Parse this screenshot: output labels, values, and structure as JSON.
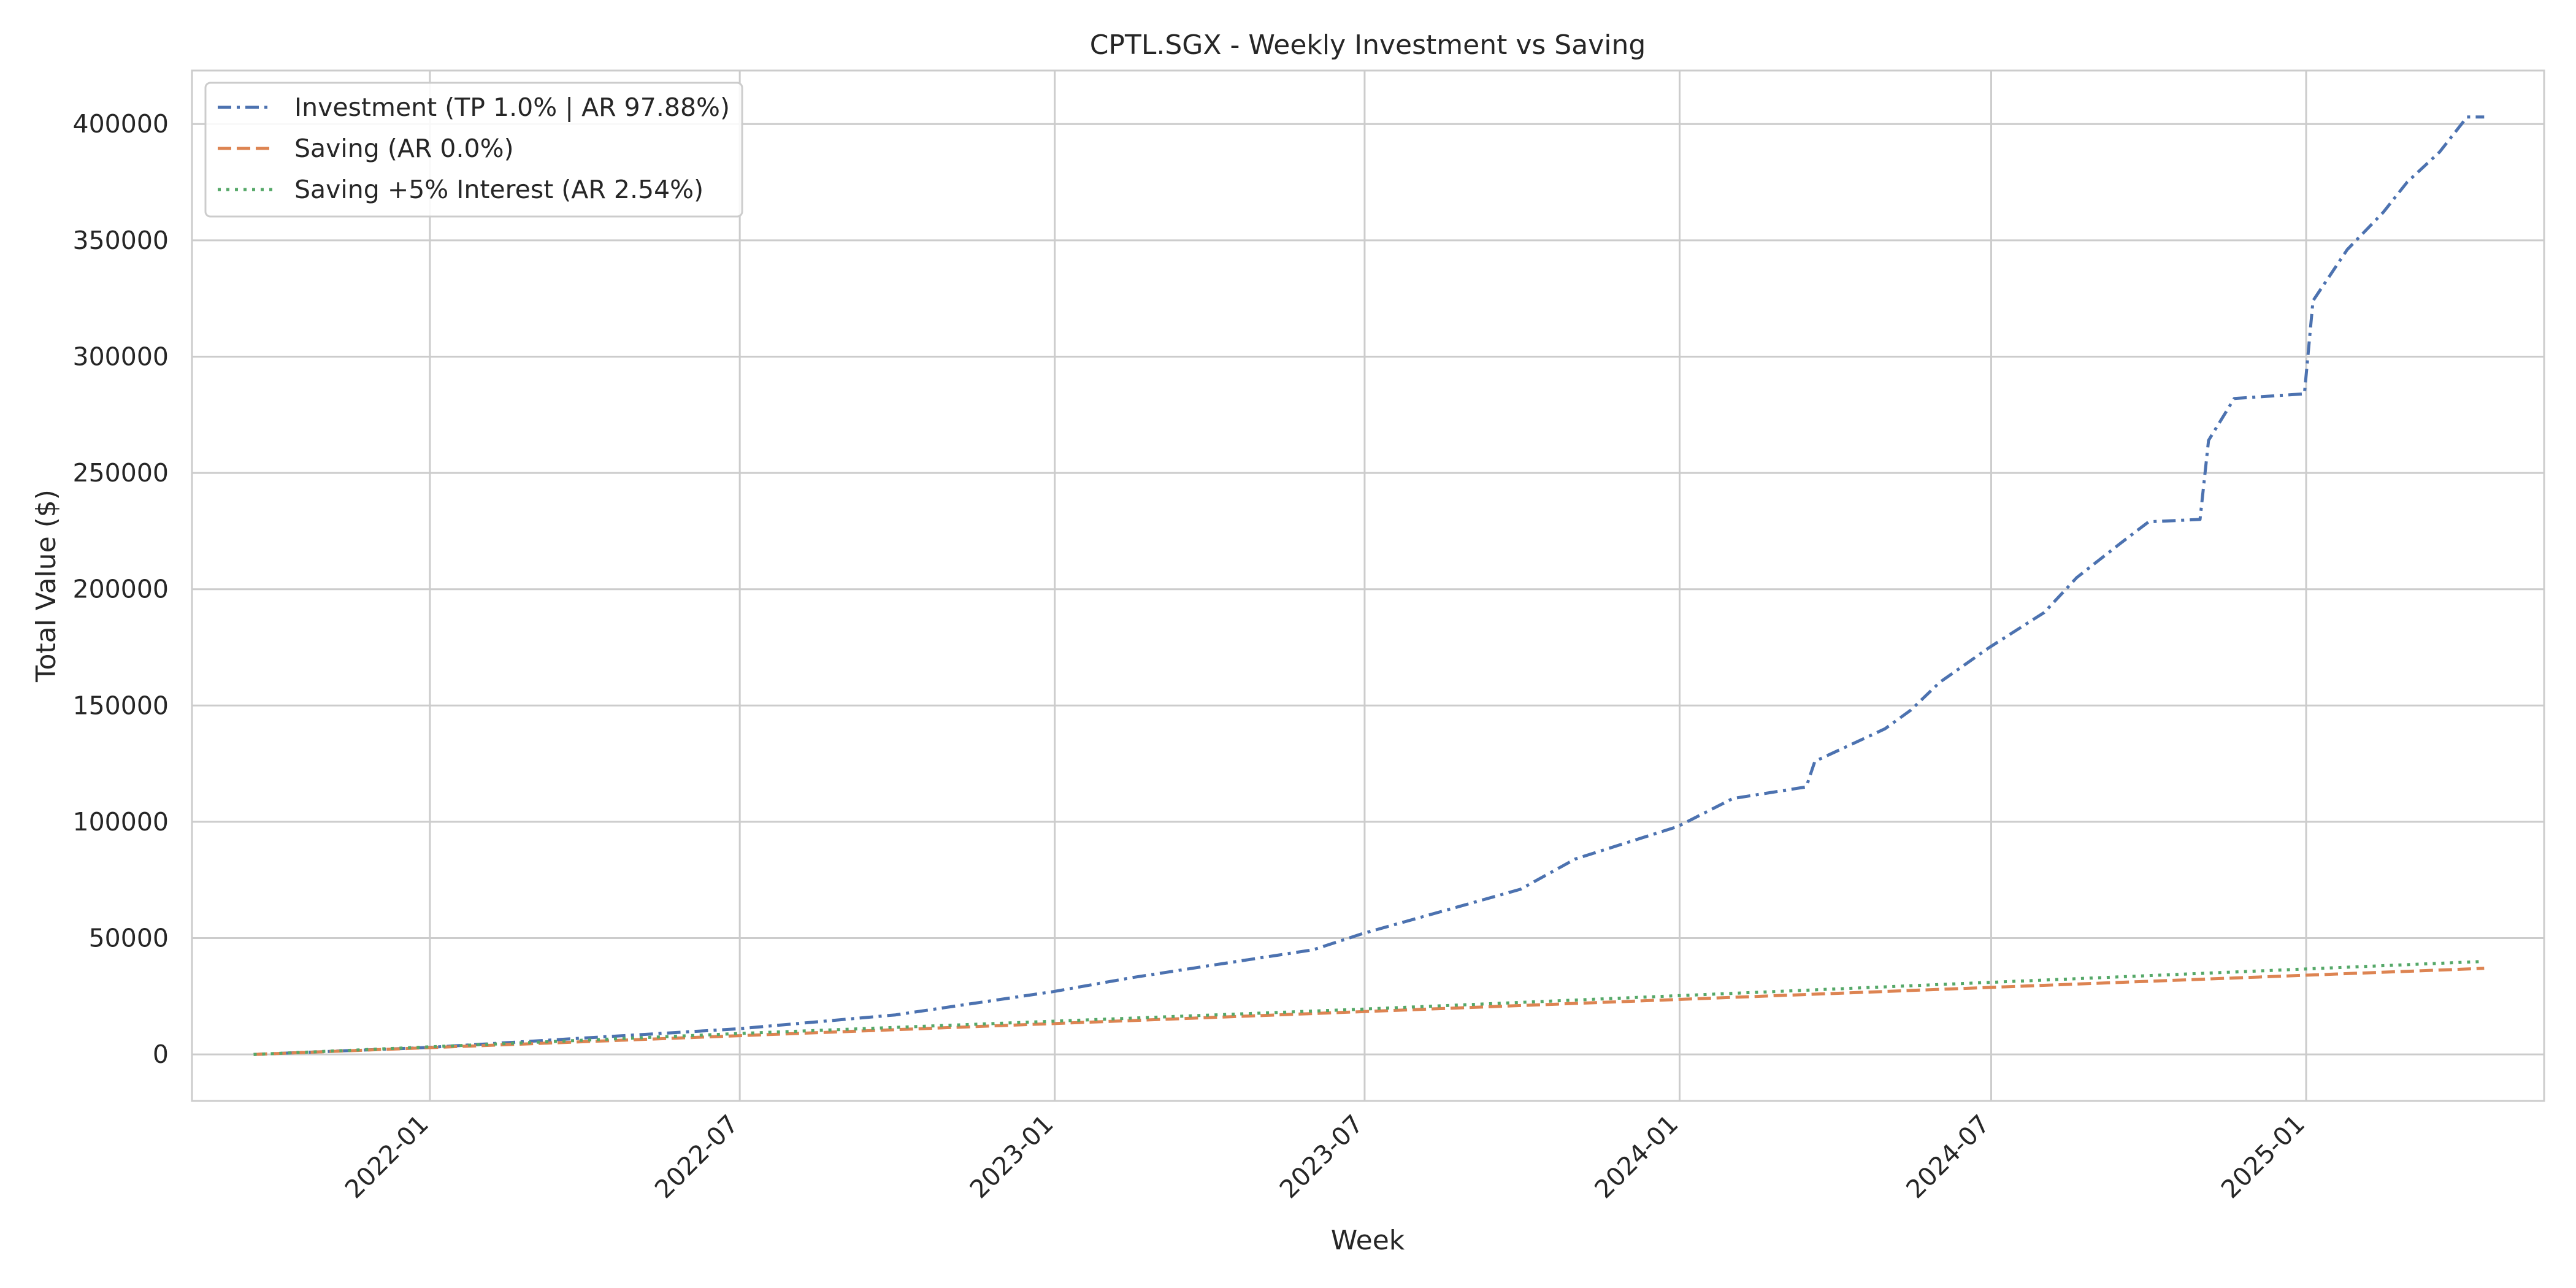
{
  "chart_data": {
    "type": "line",
    "title": "CPTL.SGX - Weekly Investment vs Saving",
    "xlabel": "Week",
    "ylabel": "Total Value ($)",
    "x_axis_type": "date",
    "x_range": [
      "2021-08-15",
      "2025-05-20"
    ],
    "ylim": [
      -20000,
      423000
    ],
    "x_ticks": [
      "2022-01",
      "2022-07",
      "2023-01",
      "2023-07",
      "2024-01",
      "2024-07",
      "2025-01"
    ],
    "y_ticks": [
      0,
      50000,
      100000,
      150000,
      200000,
      250000,
      300000,
      350000,
      400000
    ],
    "grid": true,
    "legend_position": "top-left",
    "series": [
      {
        "name": "Investment (TP 1.0% | AR 97.88%)",
        "color": "#4c72b0",
        "line_style": "dashdot",
        "points": [
          [
            "2021-09-20",
            0
          ],
          [
            "2021-12-31",
            3000
          ],
          [
            "2022-03-31",
            7000
          ],
          [
            "2022-06-30",
            11000
          ],
          [
            "2022-09-30",
            17000
          ],
          [
            "2022-12-31",
            27000
          ],
          [
            "2023-02-15",
            33000
          ],
          [
            "2023-03-31",
            38000
          ],
          [
            "2023-06-01",
            45000
          ],
          [
            "2023-06-30",
            52000
          ],
          [
            "2023-09-01",
            65000
          ],
          [
            "2023-09-30",
            71000
          ],
          [
            "2023-11-01",
            84000
          ],
          [
            "2023-12-31",
            98000
          ],
          [
            "2024-02-01",
            110000
          ],
          [
            "2024-03-15",
            115000
          ],
          [
            "2024-03-20",
            126000
          ],
          [
            "2024-04-30",
            140000
          ],
          [
            "2024-05-15",
            148000
          ],
          [
            "2024-06-01",
            160000
          ],
          [
            "2024-06-30",
            175000
          ],
          [
            "2024-08-01",
            190000
          ],
          [
            "2024-08-20",
            205000
          ],
          [
            "2024-09-15",
            220000
          ],
          [
            "2024-10-01",
            229000
          ],
          [
            "2024-10-31",
            230000
          ],
          [
            "2024-11-05",
            264000
          ],
          [
            "2024-11-20",
            282000
          ],
          [
            "2024-12-31",
            284000
          ],
          [
            "2025-01-05",
            324000
          ],
          [
            "2025-01-25",
            346000
          ],
          [
            "2025-02-15",
            362000
          ],
          [
            "2025-03-01",
            375000
          ],
          [
            "2025-03-20",
            388000
          ],
          [
            "2025-04-05",
            403000
          ],
          [
            "2025-04-15",
            403000
          ]
        ]
      },
      {
        "name": "Saving (AR 0.0%)",
        "color": "#dd8452",
        "line_style": "dashed",
        "points": [
          [
            "2021-09-20",
            0
          ],
          [
            "2025-04-15",
            37000
          ]
        ]
      },
      {
        "name": "Saving +5% Interest (AR 2.54%)",
        "color": "#55a868",
        "line_style": "dotted",
        "points": [
          [
            "2021-09-20",
            0
          ],
          [
            "2022-07-01",
            9000
          ],
          [
            "2023-07-01",
            19500
          ],
          [
            "2024-07-01",
            31000
          ],
          [
            "2025-04-15",
            40000
          ]
        ]
      }
    ]
  }
}
